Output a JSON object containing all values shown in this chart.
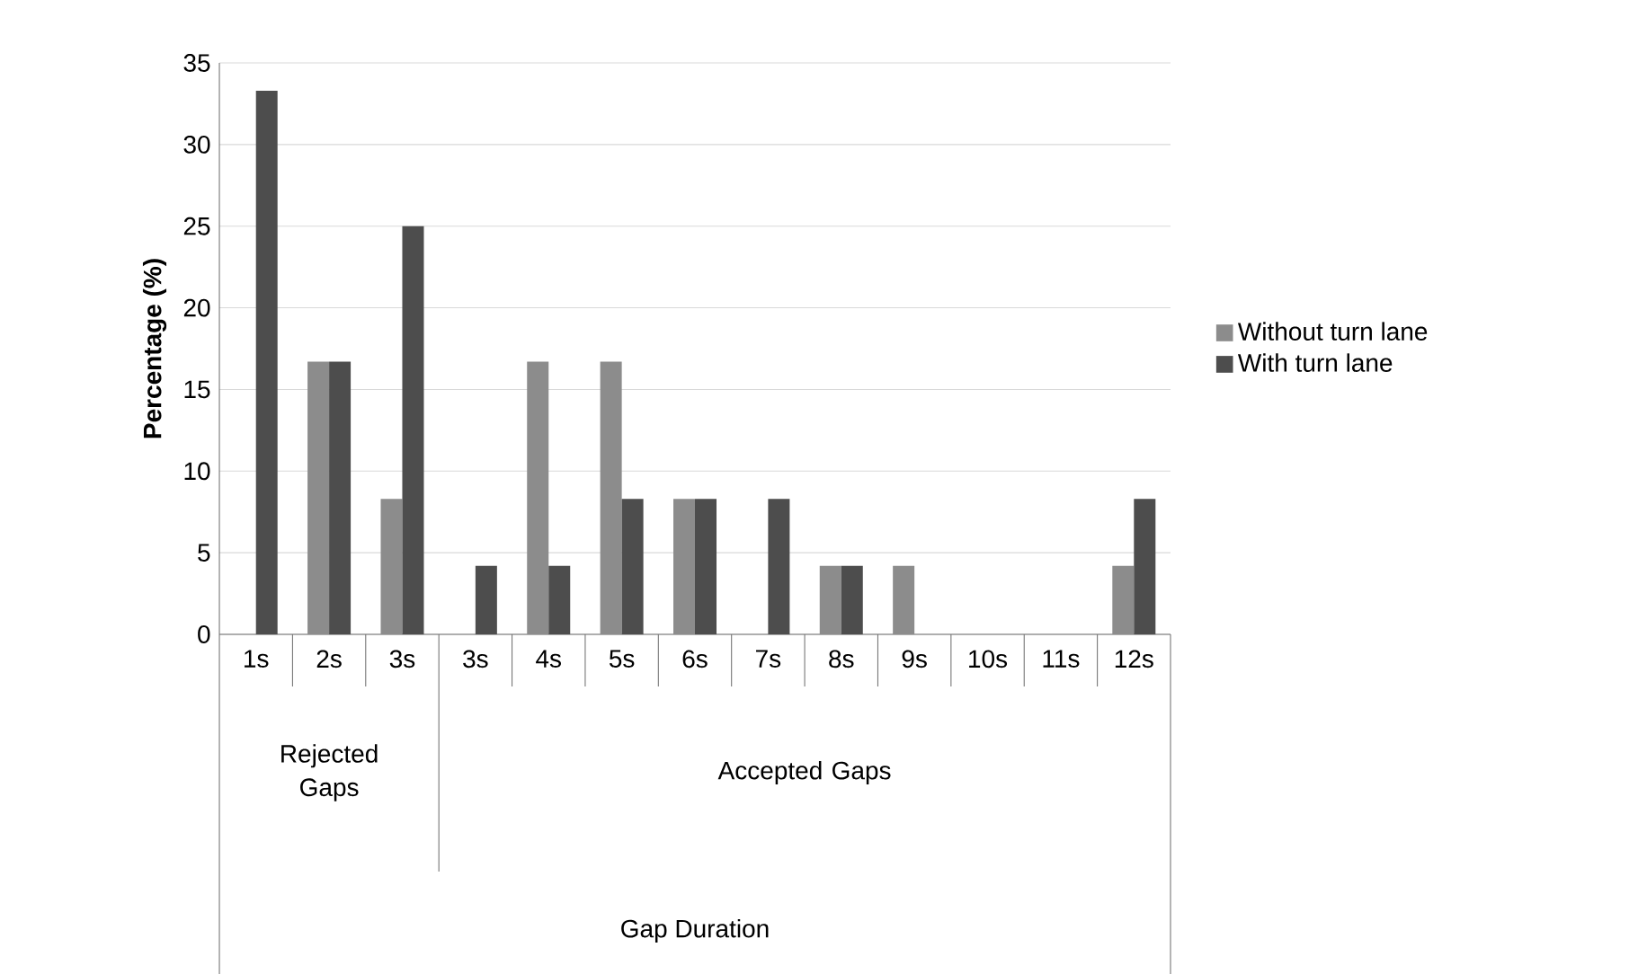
{
  "chart_data": {
    "type": "bar",
    "ylabel": "Percentage (%)",
    "annotations": [
      "Rejected Gaps",
      "Accepted Gaps",
      "Gap Duration"
    ],
    "categories": [
      "1s",
      "2s",
      "3s",
      "3s",
      "4s",
      "5s",
      "6s",
      "7s",
      "8s",
      "9s",
      "10s",
      "11s",
      "12s"
    ],
    "series": [
      {
        "name": "Without turn lane",
        "color": "#8c8c8c",
        "values": [
          0,
          16.7,
          8.3,
          0,
          16.7,
          16.7,
          8.3,
          0,
          4.2,
          4.2,
          0,
          0,
          4.2
        ]
      },
      {
        "name": "With turn lane",
        "color": "#4d4d4d",
        "values": [
          33.3,
          16.7,
          25,
          4.2,
          4.2,
          8.3,
          8.3,
          8.3,
          4.2,
          0,
          0,
          0,
          8.3
        ]
      }
    ],
    "ylim": [
      0,
      35
    ],
    "yticks": [
      0,
      5,
      10,
      15,
      20,
      25,
      30,
      35
    ],
    "grid": "y",
    "legend": "right"
  }
}
